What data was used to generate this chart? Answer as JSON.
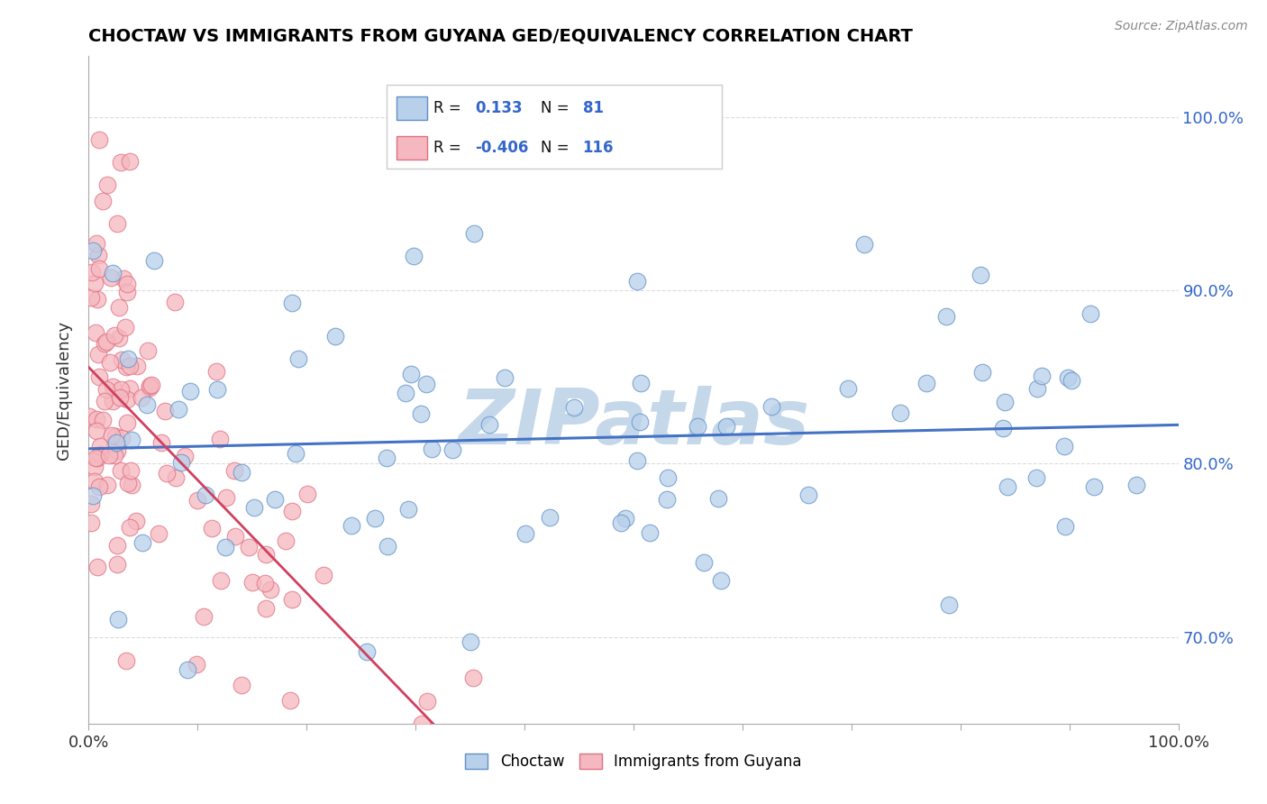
{
  "title": "CHOCTAW VS IMMIGRANTS FROM GUYANA GED/EQUIVALENCY CORRELATION CHART",
  "source": "Source: ZipAtlas.com",
  "ylabel": "GED/Equivalency",
  "xlim": [
    0.0,
    100.0
  ],
  "ylim": [
    65.0,
    103.5
  ],
  "y_ticks": [
    70.0,
    80.0,
    90.0,
    100.0
  ],
  "y_tick_labels": [
    "70.0%",
    "80.0%",
    "90.0%",
    "100.0%"
  ],
  "R_blue": 0.133,
  "N_blue": 81,
  "R_pink": -0.406,
  "N_pink": 116,
  "blue_fill": "#b8d0ea",
  "blue_edge": "#6090c8",
  "pink_fill": "#f5b8c0",
  "pink_edge": "#e07080",
  "blue_line_color": "#4472c4",
  "pink_line_color": "#d04060",
  "legend_label_blue": "Choctaw",
  "legend_label_pink": "Immigrants from Guyana",
  "watermark": "ZIPatlas",
  "watermark_color": "#c5d8ea",
  "background_color": "#ffffff",
  "grid_color": "#d8d8d8",
  "title_color": "#000000",
  "source_color": "#888888",
  "axis_color": "#555555"
}
